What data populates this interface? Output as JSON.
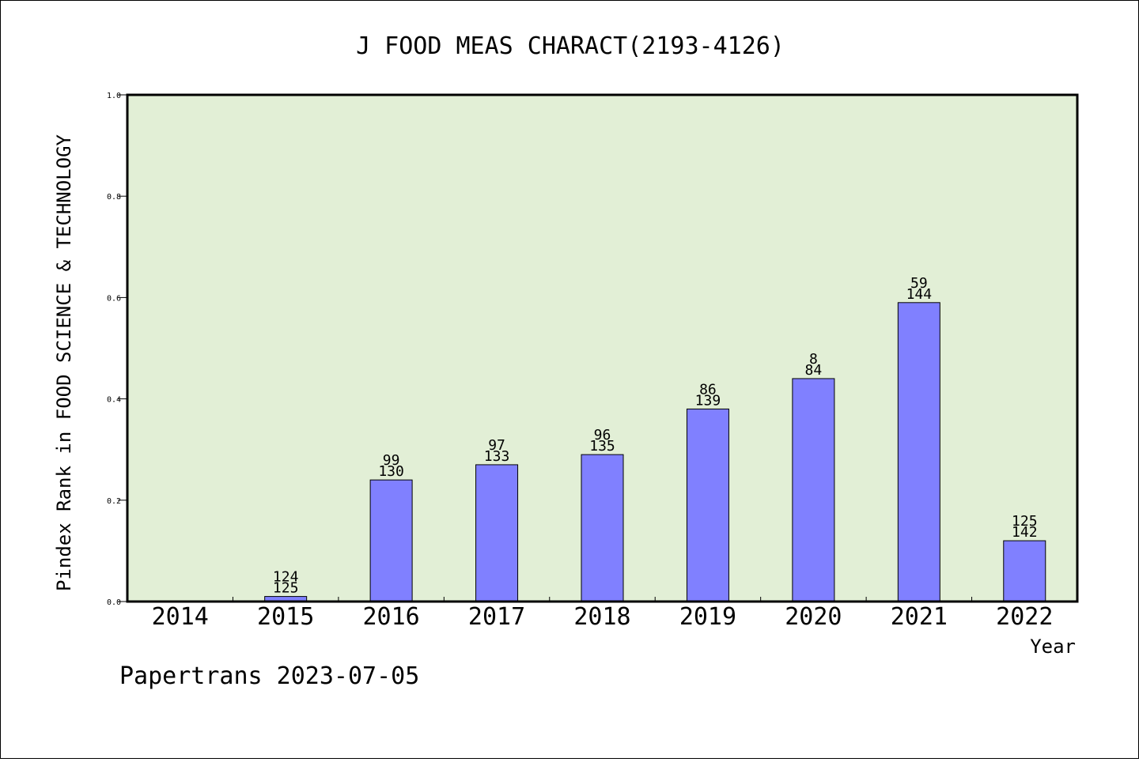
{
  "chart_data": {
    "type": "bar",
    "title": "J FOOD MEAS CHARACT(2193-4126)",
    "xlabel": "Year",
    "ylabel": "Pindex Rank in FOOD SCIENCE & TECHNOLOGY",
    "categories": [
      "2014",
      "2015",
      "2016",
      "2017",
      "2018",
      "2019",
      "2020",
      "2021",
      "2022"
    ],
    "values": [
      null,
      0.01,
      0.24,
      0.27,
      0.29,
      0.38,
      0.44,
      0.59,
      0.12
    ],
    "bar_labels_top": [
      "",
      "124",
      "99",
      "97",
      "96",
      "86",
      "8",
      "59",
      "125"
    ],
    "bar_labels_bottom": [
      "",
      "125",
      "130",
      "133",
      "135",
      "139",
      "84",
      "144",
      "142"
    ],
    "ylim": [
      0,
      1.0
    ],
    "yticks": [
      "0.0",
      "0.2",
      "0.4",
      "0.6",
      "0.8",
      "1.0"
    ],
    "grid": false,
    "colors": {
      "plot_background": "#e2efd6",
      "bar_fill": "#8080ff",
      "bar_stroke": "#000000"
    }
  },
  "footer": "Papertrans 2023-07-05"
}
